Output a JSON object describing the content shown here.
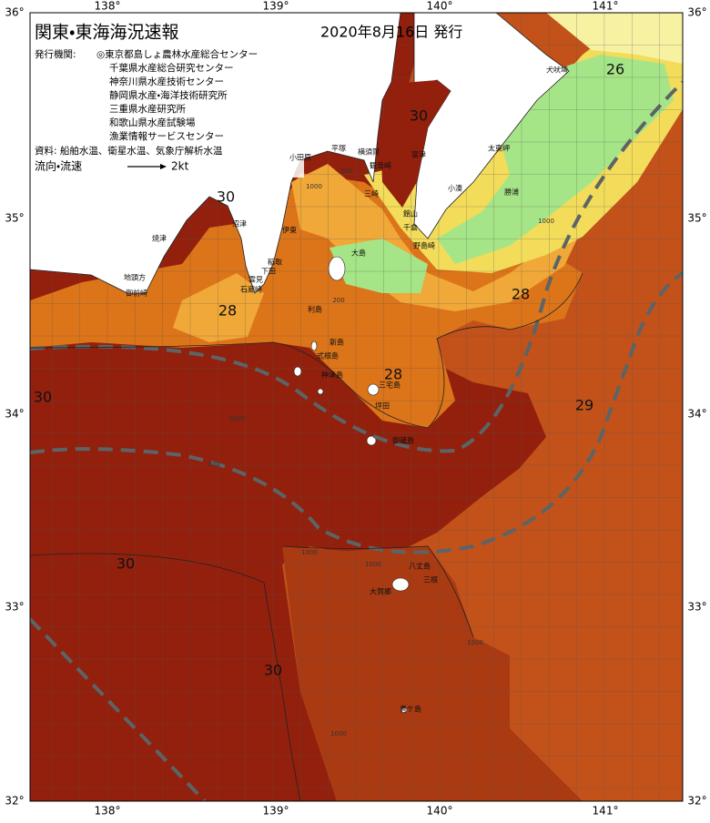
{
  "header": {
    "title": "関東・東海海況速報",
    "date": "2020年8月16日 発行"
  },
  "issuers": {
    "label": "発行機関:",
    "items": [
      "◎東京都島しょ農林水産総合センター",
      "千葉県水産総合研究センター",
      "神奈川県水産技術センター",
      "静岡県水産・海洋技術研究所",
      "三重県水産研究所",
      "和歌山県水産試験場",
      "漁業情報サービスセンター"
    ]
  },
  "source": "資料: 船舶水温、衛星水温、気象庁解析水温",
  "legend": {
    "label": "流向・流速",
    "scale": "2kt"
  },
  "axes": {
    "longitude": [
      "138°",
      "139°",
      "140°",
      "141°"
    ],
    "latitude": [
      "36°",
      "35°",
      "34°",
      "33°",
      "32°"
    ]
  },
  "contour_labels": [
    "26",
    "30",
    "30",
    "28",
    "28",
    "28",
    "29",
    "30",
    "30",
    "30"
  ],
  "places": [
    "犬吠埼",
    "太東岬",
    "勝浦",
    "小湊",
    "館山",
    "千倉",
    "野島崎",
    "富津",
    "観音崎",
    "横須賀",
    "平塚",
    "小田原",
    "三崎",
    "伊東",
    "大島",
    "稲取",
    "下田",
    "雲見",
    "石廊崎",
    "利島",
    "新島",
    "式根島",
    "神津島",
    "三宅島",
    "坪田",
    "御蔵島",
    "八丈島",
    "三根",
    "大賀郷",
    "青ケ島",
    "焼津",
    "沼津",
    "地頭方",
    "御前崎"
  ],
  "depth_labels": [
    "200",
    "1000",
    "200",
    "1000",
    "200",
    "1000",
    "1000",
    "1000",
    "1000",
    "1000"
  ]
}
